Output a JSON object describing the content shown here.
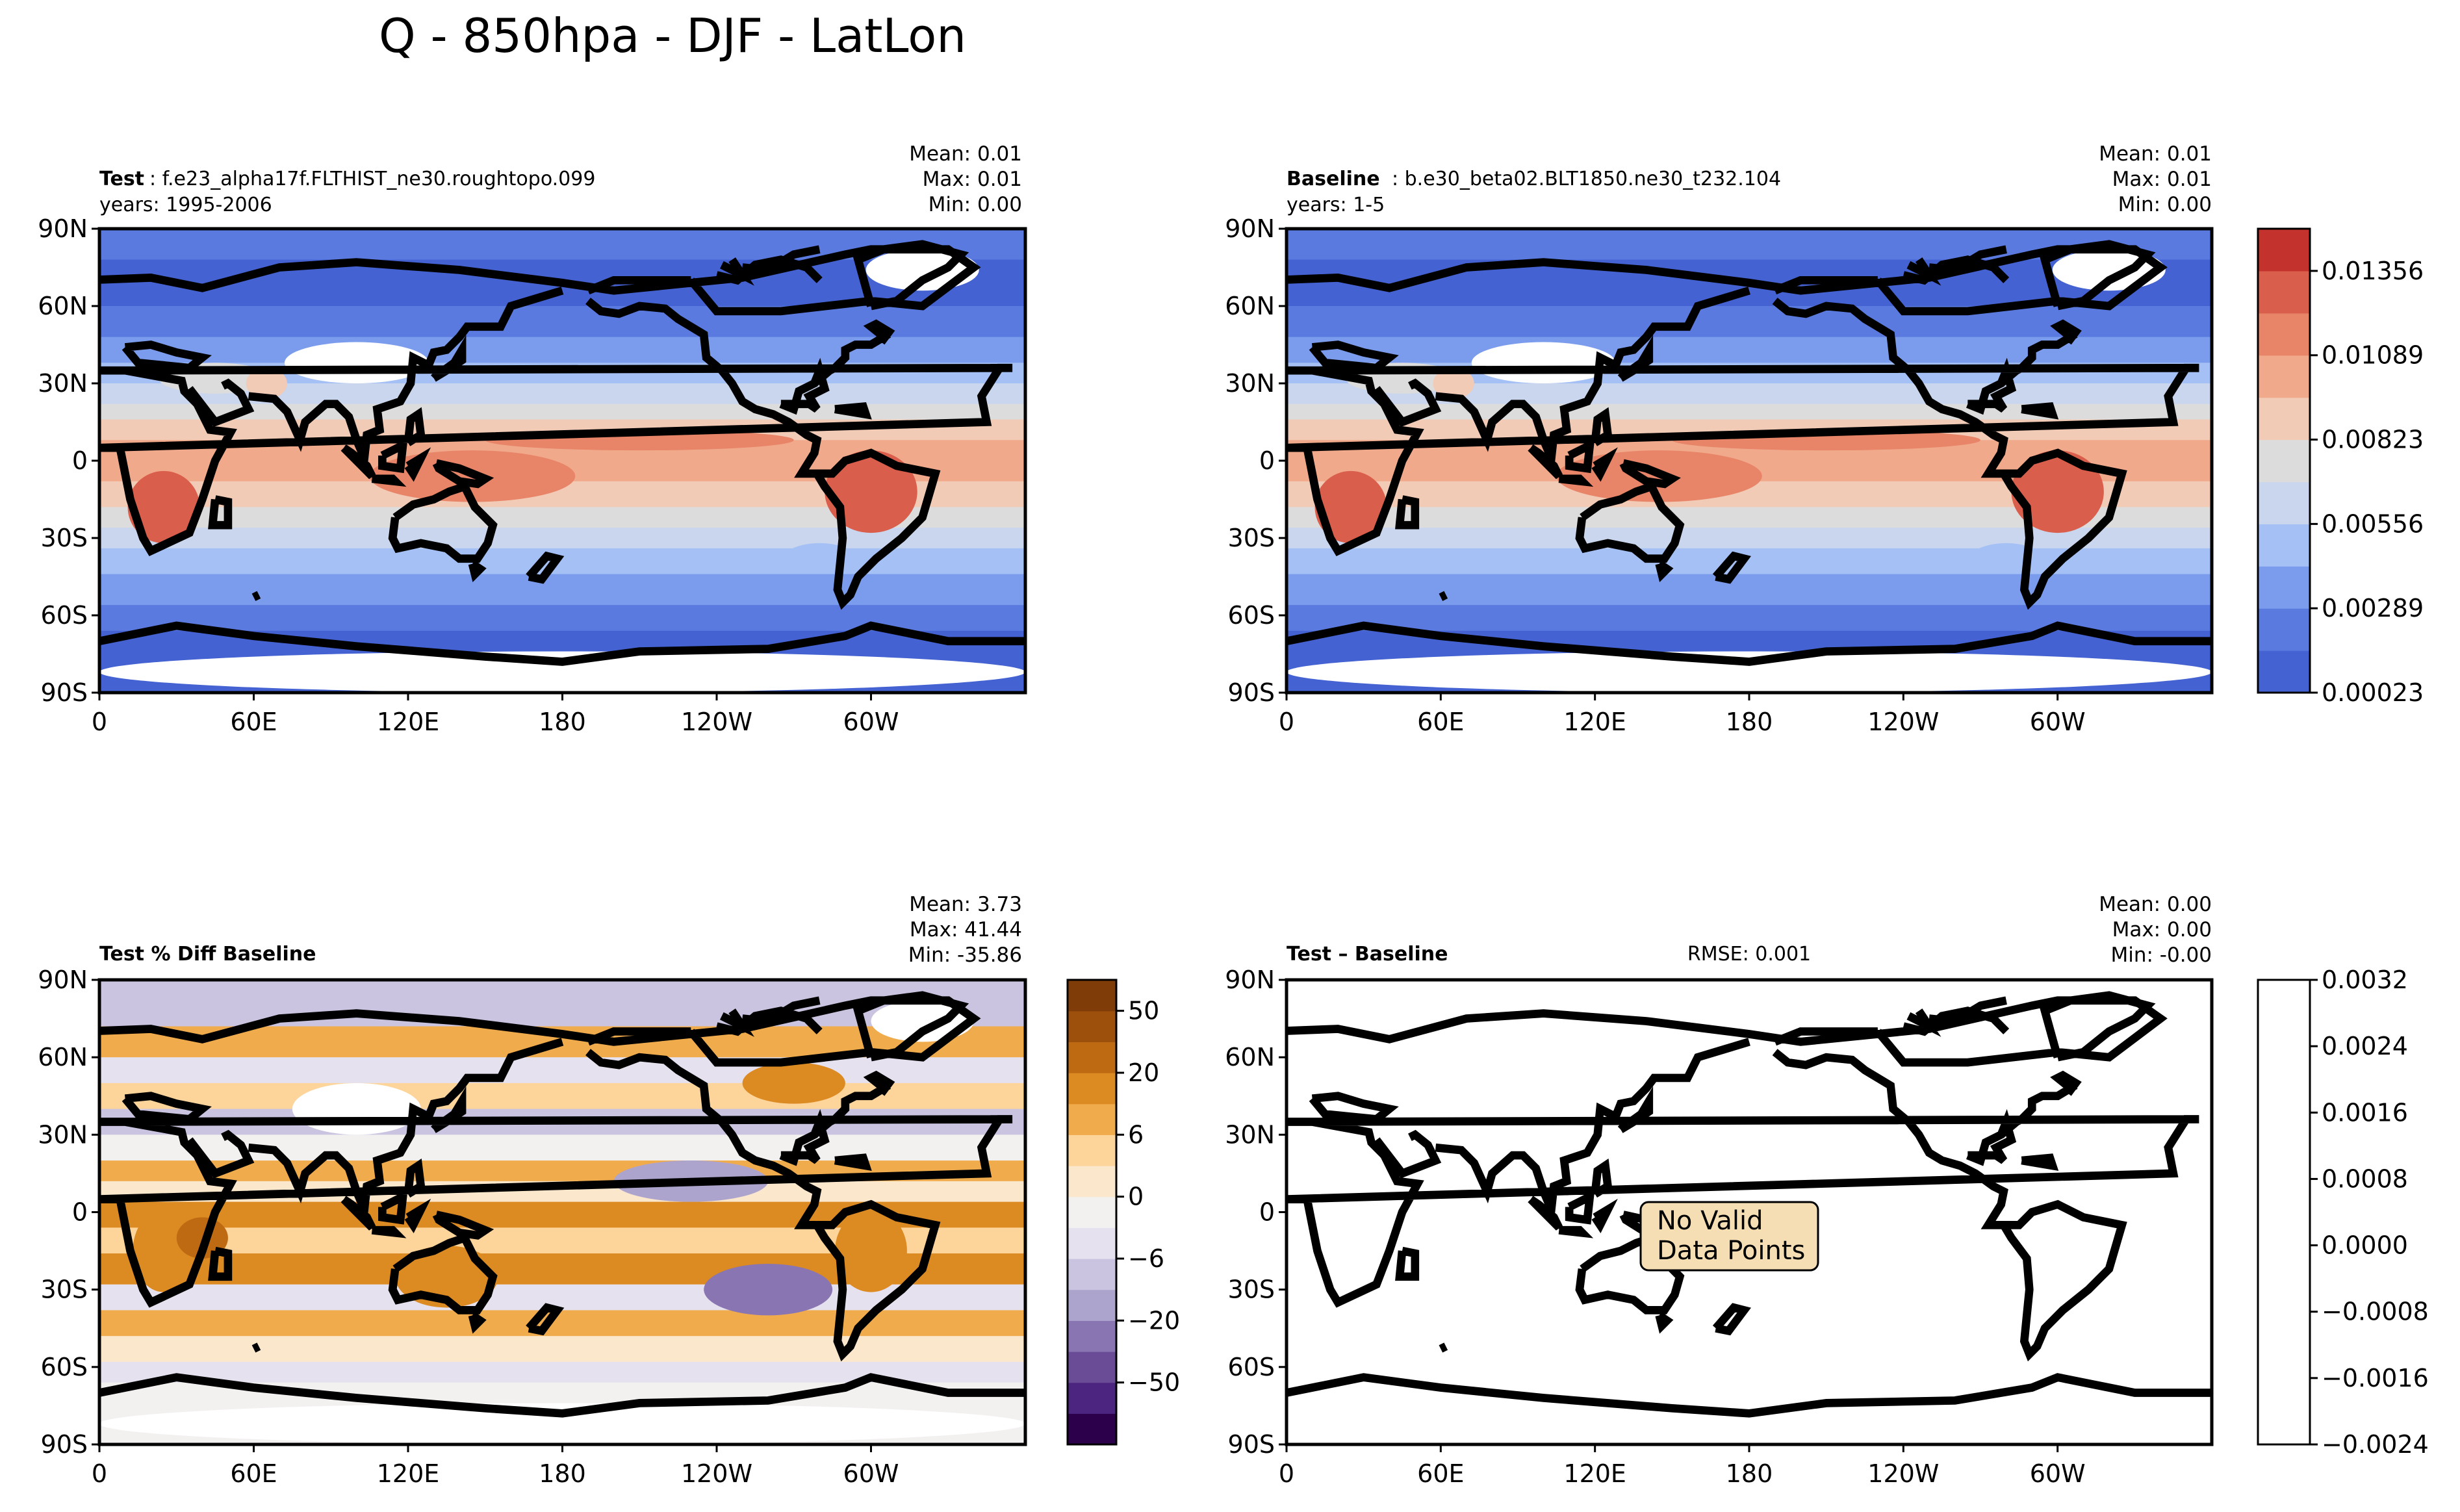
{
  "figure_title": "Q - 850hpa - DJF - LatLon",
  "chart_data": [
    {
      "type": "heatmap",
      "panel": "test",
      "label_bold": "Test",
      "label_text": ": f.e23_alpha17f.FLTHIST_ne30.roughtopo.099",
      "years": "years: 1995-2006",
      "stats": {
        "mean": "Mean:  0.01",
        "max": "Max:  0.01",
        "min": "Min:  0.00"
      },
      "x_ticks": [
        "0",
        "60E",
        "120E",
        "180",
        "120W",
        "60W"
      ],
      "y_ticks": [
        "90N",
        "60N",
        "30N",
        "0",
        "30S",
        "60S",
        "90S"
      ],
      "xlim": [
        0,
        360
      ],
      "ylim": [
        -90,
        90
      ],
      "colormap": "coolwarm"
    },
    {
      "type": "heatmap",
      "panel": "baseline",
      "label_bold": "Baseline",
      "label_text": ": b.e30_beta02.BLT1850.ne30_t232.104",
      "years": "years: 1-5",
      "stats": {
        "mean": "Mean:  0.01",
        "max": "Max:  0.01",
        "min": "Min:  0.00"
      },
      "x_ticks": [
        "0",
        "60E",
        "120E",
        "180",
        "120W",
        "60W"
      ],
      "y_ticks": [
        "90N",
        "60N",
        "30N",
        "0",
        "30S",
        "60S",
        "90S"
      ],
      "xlim": [
        0,
        360
      ],
      "ylim": [
        -90,
        90
      ],
      "colorbar": {
        "ticks": [
          "0.00023",
          "0.00289",
          "0.00556",
          "0.00823",
          "0.01089",
          "0.01356"
        ],
        "colors": [
          "#4462d1",
          "#5a7ae0",
          "#7b9ced",
          "#a4c0f5",
          "#c9d6ee",
          "#dcdcdc",
          "#f2cbb7",
          "#f1a98b",
          "#e88467",
          "#d95f4c",
          "#c4322d"
        ]
      }
    },
    {
      "type": "heatmap",
      "panel": "pct_diff",
      "label_bold": "Test % Diff Baseline",
      "stats": {
        "mean": "Mean:  3.73",
        "max": "Max: 41.44",
        "min": "Min: -35.86"
      },
      "x_ticks": [
        "0",
        "60E",
        "120E",
        "180",
        "120W",
        "60W"
      ],
      "y_ticks": [
        "90N",
        "60N",
        "30N",
        "0",
        "30S",
        "60S",
        "90S"
      ],
      "xlim": [
        0,
        360
      ],
      "ylim": [
        -90,
        90
      ],
      "colorbar": {
        "ticks": [
          "50",
          "20",
          "6",
          "0",
          "−6",
          "−20",
          "−50"
        ],
        "colors": [
          "#7f3b08",
          "#9d500c",
          "#bd6a12",
          "#dc8a22",
          "#f0ac4c",
          "#fdd49a",
          "#fbe8cc",
          "#f3f0f0",
          "#e6e1ee",
          "#cac4e0",
          "#ada4cd",
          "#8a75b3",
          "#6a4b96",
          "#4c2580",
          "#2d004b"
        ]
      }
    },
    {
      "type": "heatmap",
      "panel": "diff",
      "label_bold": "Test – Baseline",
      "rmse": "RMSE: 0.001",
      "stats": {
        "mean": "Mean:  0.00",
        "max": "Max:  0.00",
        "min": "Min: -0.00"
      },
      "annotation": [
        "No Valid",
        "Data Points"
      ],
      "x_ticks": [
        "0",
        "60E",
        "120E",
        "180",
        "120W",
        "60W"
      ],
      "y_ticks": [
        "90N",
        "60N",
        "30N",
        "0",
        "30S",
        "60S",
        "90S"
      ],
      "xlim": [
        0,
        360
      ],
      "ylim": [
        -90,
        90
      ],
      "colorbar": {
        "ticks": [
          "0.0032",
          "0.0024",
          "0.0016",
          "0.0008",
          "0.0000",
          "−0.0008",
          "−0.0016",
          "−0.0024"
        ]
      }
    }
  ]
}
